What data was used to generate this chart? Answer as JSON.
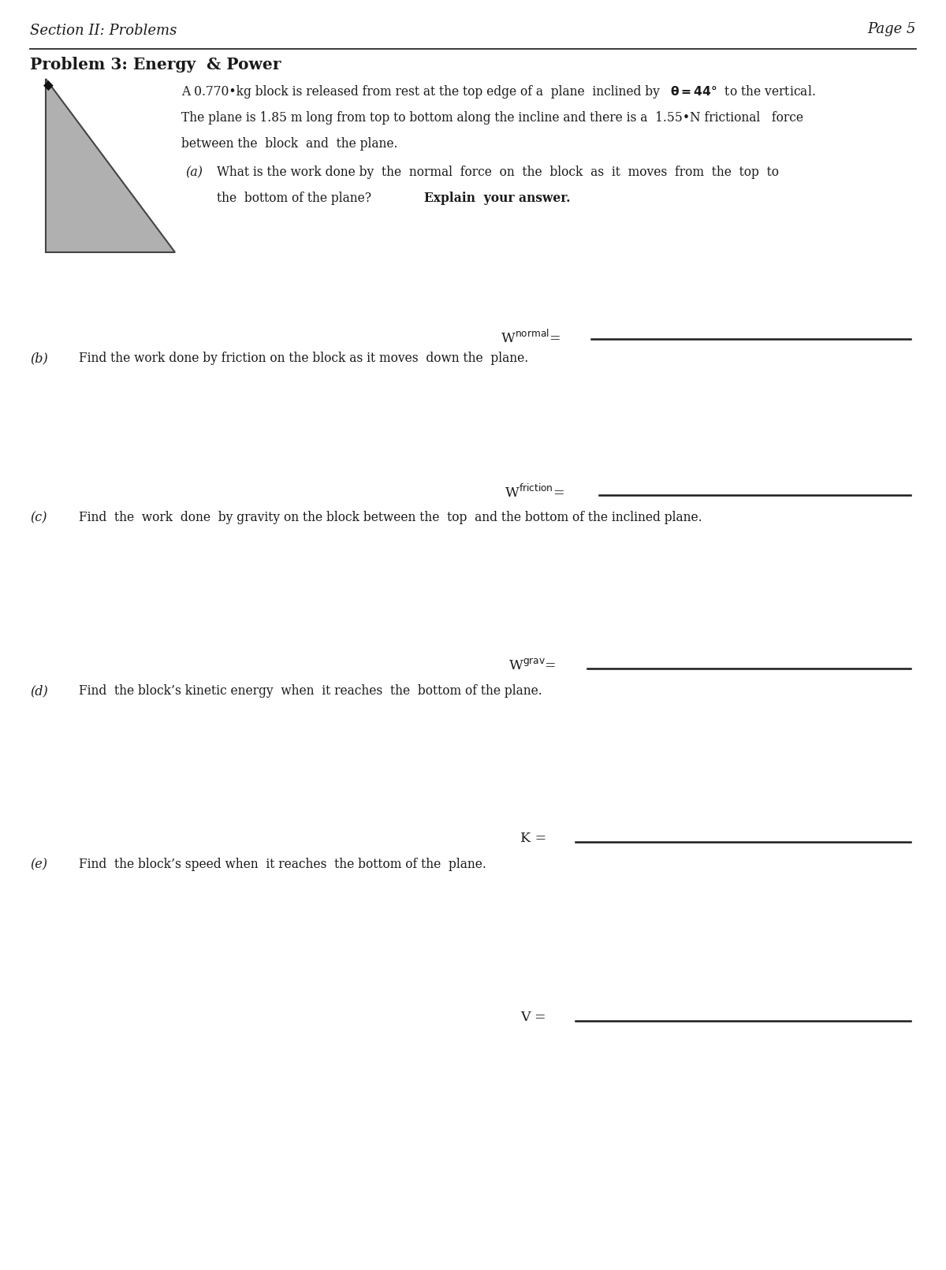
{
  "page_label": "Page 5",
  "section_label": "Section II: Problems",
  "problem_title": "Problem 3: Energy  & Power",
  "bg_color": "#ffffff",
  "line_color": "#1a1a1a",
  "triangle_color": "#b0b0b0",
  "fig_width": 12.0,
  "fig_height": 16.11,
  "dpi": 100
}
